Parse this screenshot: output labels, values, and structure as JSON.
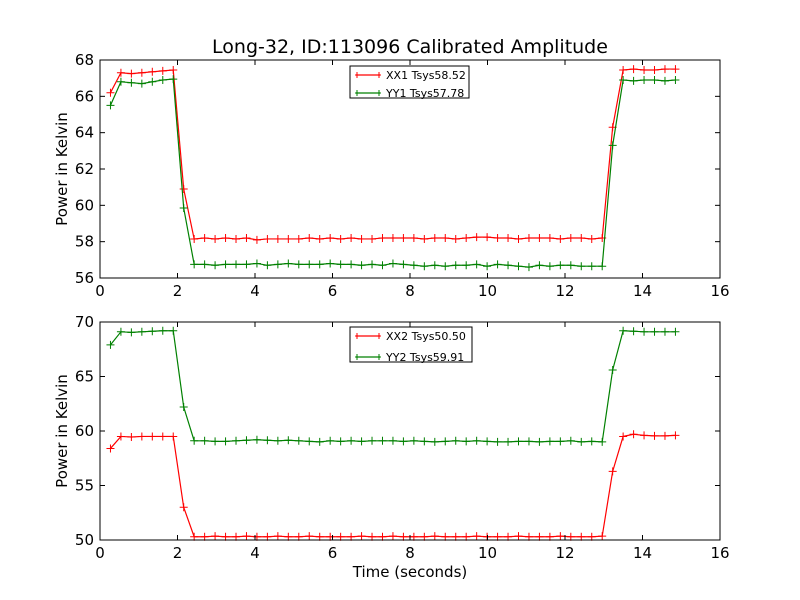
{
  "chart_data": {
    "title": "Long-32, ID:113096 Calibrated Amplitude",
    "xlabel": "Time (seconds)",
    "x": [
      0.27,
      0.54,
      0.81,
      1.08,
      1.35,
      1.62,
      1.89,
      2.16,
      2.43,
      2.7,
      2.97,
      3.24,
      3.51,
      3.78,
      4.05,
      4.32,
      4.59,
      4.86,
      5.13,
      5.4,
      5.67,
      5.94,
      6.21,
      6.48,
      6.75,
      7.02,
      7.29,
      7.56,
      7.83,
      8.1,
      8.37,
      8.64,
      8.91,
      9.18,
      9.45,
      9.72,
      9.99,
      10.26,
      10.53,
      10.8,
      11.07,
      11.34,
      11.61,
      11.88,
      12.15,
      12.42,
      12.69,
      12.96,
      13.23,
      13.5,
      13.77,
      14.04,
      14.31,
      14.58,
      14.85
    ],
    "panels": [
      {
        "type": "line",
        "ylabel": "Power in Kelvin",
        "xlim": [
          0,
          16
        ],
        "ylim": [
          56,
          68
        ],
        "xticks": [
          "0",
          "2",
          "4",
          "6",
          "8",
          "10",
          "12",
          "14",
          "16"
        ],
        "yticks": [
          "56",
          "58",
          "60",
          "62",
          "64",
          "66",
          "68"
        ],
        "legend_position": "top-center",
        "series": [
          {
            "name": "XX1 Tsys58.52",
            "color": "#ff0000",
            "values": [
              66.2,
              67.3,
              67.25,
              67.3,
              67.35,
              67.4,
              67.45,
              60.9,
              58.15,
              58.2,
              58.15,
              58.2,
              58.15,
              58.2,
              58.1,
              58.15,
              58.15,
              58.15,
              58.15,
              58.2,
              58.15,
              58.2,
              58.15,
              58.2,
              58.15,
              58.15,
              58.2,
              58.2,
              58.2,
              58.2,
              58.15,
              58.2,
              58.2,
              58.15,
              58.2,
              58.25,
              58.25,
              58.2,
              58.2,
              58.15,
              58.2,
              58.2,
              58.2,
              58.15,
              58.2,
              58.2,
              58.15,
              58.2,
              64.3,
              67.45,
              67.5,
              67.45,
              67.45,
              67.5,
              67.5
            ]
          },
          {
            "name": "YY1 Tsys57.78",
            "color": "#008000",
            "values": [
              65.5,
              66.8,
              66.75,
              66.7,
              66.8,
              66.9,
              66.95,
              59.85,
              56.75,
              56.75,
              56.7,
              56.75,
              56.75,
              56.75,
              56.8,
              56.7,
              56.75,
              56.8,
              56.75,
              56.75,
              56.75,
              56.8,
              56.75,
              56.75,
              56.7,
              56.75,
              56.7,
              56.8,
              56.75,
              56.7,
              56.65,
              56.7,
              56.65,
              56.7,
              56.7,
              56.75,
              56.65,
              56.75,
              56.7,
              56.65,
              56.6,
              56.7,
              56.65,
              56.7,
              56.7,
              56.65,
              56.65,
              56.65,
              63.3,
              66.9,
              66.85,
              66.9,
              66.9,
              66.85,
              66.9
            ]
          }
        ]
      },
      {
        "type": "line",
        "ylabel": "Power in Kelvin",
        "xlabel": "Time (seconds)",
        "xlim": [
          0,
          16
        ],
        "ylim": [
          50,
          70
        ],
        "xticks": [
          "0",
          "2",
          "4",
          "6",
          "8",
          "10",
          "12",
          "14",
          "16"
        ],
        "yticks": [
          "50",
          "55",
          "60",
          "65",
          "70"
        ],
        "legend_position": "top-center",
        "series": [
          {
            "name": "XX2 Tsys50.50",
            "color": "#ff0000",
            "values": [
              58.4,
              59.5,
              59.45,
              59.5,
              59.5,
              59.5,
              59.5,
              53.0,
              50.3,
              50.3,
              50.35,
              50.3,
              50.3,
              50.35,
              50.3,
              50.3,
              50.35,
              50.3,
              50.3,
              50.35,
              50.3,
              50.3,
              50.3,
              50.3,
              50.35,
              50.3,
              50.3,
              50.35,
              50.3,
              50.3,
              50.3,
              50.35,
              50.3,
              50.3,
              50.3,
              50.35,
              50.3,
              50.3,
              50.3,
              50.35,
              50.3,
              50.3,
              50.3,
              50.35,
              50.3,
              50.3,
              50.3,
              50.35,
              56.3,
              59.5,
              59.7,
              59.6,
              59.55,
              59.55,
              59.6
            ]
          },
          {
            "name": "YY2 Tsys59.91",
            "color": "#008000",
            "values": [
              67.9,
              69.1,
              69.05,
              69.1,
              69.15,
              69.2,
              69.2,
              62.2,
              59.1,
              59.1,
              59.05,
              59.05,
              59.1,
              59.15,
              59.2,
              59.15,
              59.1,
              59.15,
              59.1,
              59.05,
              59.0,
              59.1,
              59.05,
              59.1,
              59.05,
              59.1,
              59.1,
              59.1,
              59.05,
              59.1,
              59.05,
              59.0,
              59.05,
              59.1,
              59.05,
              59.1,
              59.05,
              59.0,
              59.0,
              59.05,
              59.05,
              59.0,
              59.05,
              59.05,
              59.1,
              59.0,
              59.05,
              59.0,
              65.6,
              69.2,
              69.15,
              69.1,
              69.1,
              69.1,
              69.1
            ]
          }
        ]
      }
    ]
  }
}
